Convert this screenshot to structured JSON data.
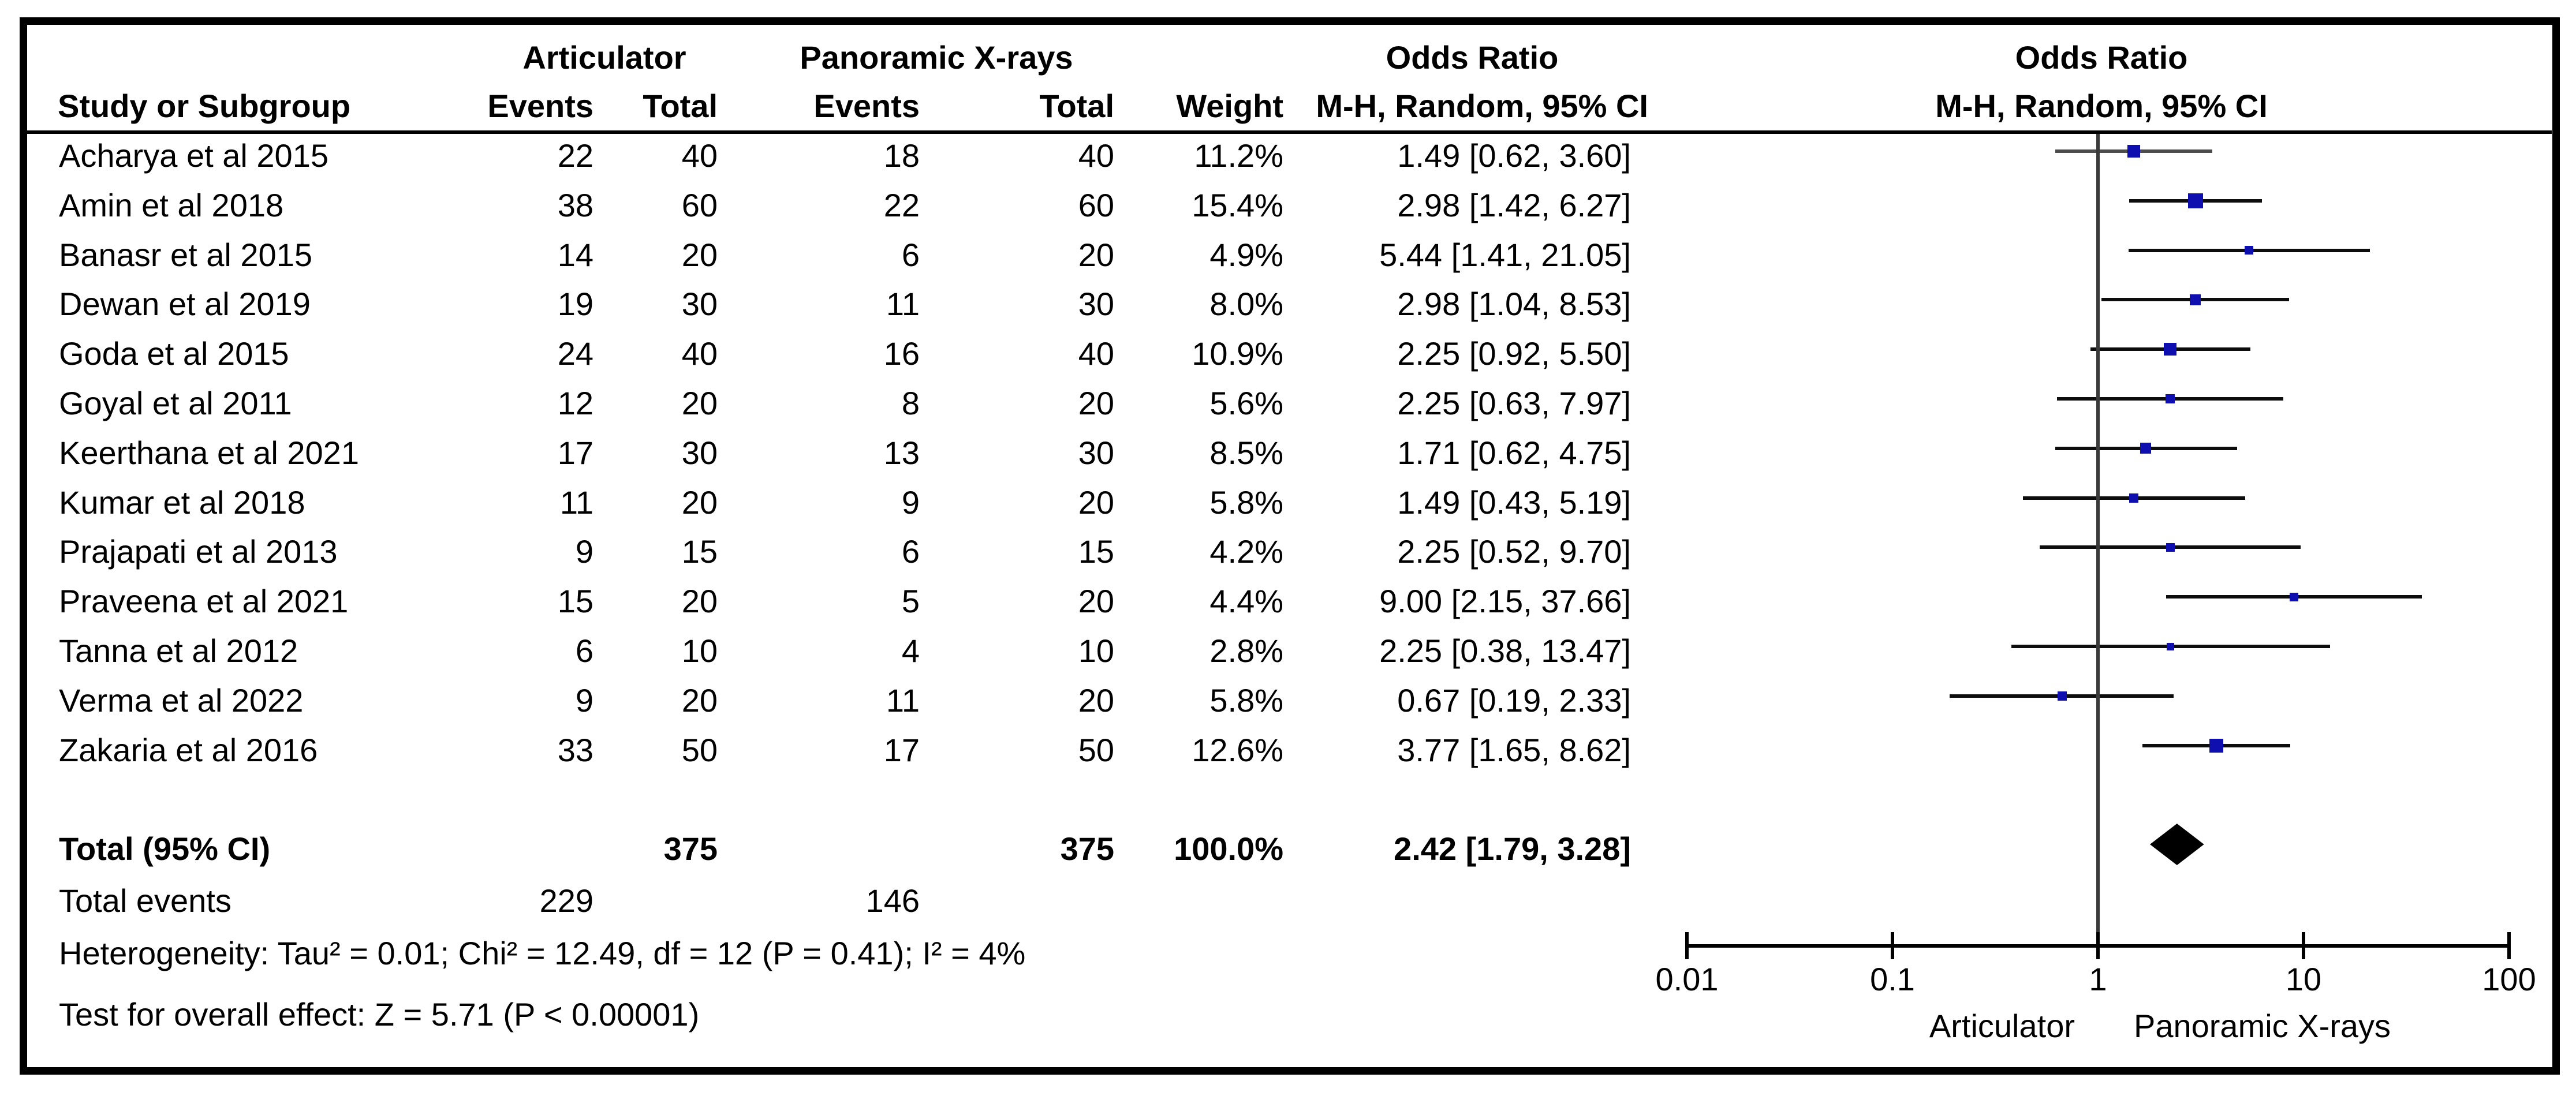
{
  "header": {
    "group1": "Articulator",
    "group2": "Panoramic X-rays",
    "or_col_title": "Odds Ratio",
    "or_plot_title": "Odds Ratio",
    "method_col": "M-H, Random, 95% CI",
    "method_plot": "M-H, Random, 95% CI",
    "study": "Study or Subgroup",
    "events1": "Events",
    "total1": "Total",
    "events2": "Events",
    "total2": "Total",
    "weight": "Weight"
  },
  "colors": {
    "marker": "#0f0fb0",
    "ci_line": "#0d0d0d",
    "ci_line_first": "#4d4d4d",
    "diamond": "#000000",
    "axis": "#000000",
    "null_line": "#3a3a3a",
    "border": "#000000"
  },
  "chart_data": {
    "type": "scatter",
    "subtype": "forest-plot",
    "effect_measure": "Odds Ratio, M-H, Random, 95% CI",
    "x_axis": {
      "scale": "log10",
      "range": [
        0.01,
        100
      ],
      "ticks": [
        "0.01",
        "0.1",
        "1",
        "10",
        "100"
      ],
      "null_value": 1,
      "left_label": "Articulator",
      "right_label": "Panoramic X-rays"
    },
    "studies": [
      {
        "name": "Acharya et al 2015",
        "events1": "22",
        "total1": "40",
        "events2": "18",
        "total2": "40",
        "weight": "11.2%",
        "weight_pct": 11.2,
        "or": 1.49,
        "ci_low": 0.62,
        "ci_high": 3.6,
        "or_text": "1.49 [0.62, 3.60]"
      },
      {
        "name": "Amin et al 2018",
        "events1": "38",
        "total1": "60",
        "events2": "22",
        "total2": "60",
        "weight": "15.4%",
        "weight_pct": 15.4,
        "or": 2.98,
        "ci_low": 1.42,
        "ci_high": 6.27,
        "or_text": "2.98 [1.42, 6.27]"
      },
      {
        "name": "Banasr et al 2015",
        "events1": "14",
        "total1": "20",
        "events2": "6",
        "total2": "20",
        "weight": "4.9%",
        "weight_pct": 4.9,
        "or": 5.44,
        "ci_low": 1.41,
        "ci_high": 21.05,
        "or_text": "5.44 [1.41, 21.05]"
      },
      {
        "name": "Dewan et al 2019",
        "events1": "19",
        "total1": "30",
        "events2": "11",
        "total2": "30",
        "weight": "8.0%",
        "weight_pct": 8.0,
        "or": 2.98,
        "ci_low": 1.04,
        "ci_high": 8.53,
        "or_text": "2.98 [1.04, 8.53]"
      },
      {
        "name": "Goda et al 2015",
        "events1": "24",
        "total1": "40",
        "events2": "16",
        "total2": "40",
        "weight": "10.9%",
        "weight_pct": 10.9,
        "or": 2.25,
        "ci_low": 0.92,
        "ci_high": 5.5,
        "or_text": "2.25 [0.92, 5.50]"
      },
      {
        "name": "Goyal et al 2011",
        "events1": "12",
        "total1": "20",
        "events2": "8",
        "total2": "20",
        "weight": "5.6%",
        "weight_pct": 5.6,
        "or": 2.25,
        "ci_low": 0.63,
        "ci_high": 7.97,
        "or_text": "2.25 [0.63, 7.97]"
      },
      {
        "name": "Keerthana et al 2021",
        "events1": "17",
        "total1": "30",
        "events2": "13",
        "total2": "30",
        "weight": "8.5%",
        "weight_pct": 8.5,
        "or": 1.71,
        "ci_low": 0.62,
        "ci_high": 4.75,
        "or_text": "1.71 [0.62, 4.75]"
      },
      {
        "name": "Kumar et al 2018",
        "events1": "11",
        "total1": "20",
        "events2": "9",
        "total2": "20",
        "weight": "5.8%",
        "weight_pct": 5.8,
        "or": 1.49,
        "ci_low": 0.43,
        "ci_high": 5.19,
        "or_text": "1.49 [0.43, 5.19]"
      },
      {
        "name": "Prajapati et al 2013",
        "events1": "9",
        "total1": "15",
        "events2": "6",
        "total2": "15",
        "weight": "4.2%",
        "weight_pct": 4.2,
        "or": 2.25,
        "ci_low": 0.52,
        "ci_high": 9.7,
        "or_text": "2.25 [0.52, 9.70]"
      },
      {
        "name": "Praveena et al 2021",
        "events1": "15",
        "total1": "20",
        "events2": "5",
        "total2": "20",
        "weight": "4.4%",
        "weight_pct": 4.4,
        "or": 9.0,
        "ci_low": 2.15,
        "ci_high": 37.66,
        "or_text": "9.00 [2.15, 37.66]"
      },
      {
        "name": "Tanna et al 2012",
        "events1": "6",
        "total1": "10",
        "events2": "4",
        "total2": "10",
        "weight": "2.8%",
        "weight_pct": 2.8,
        "or": 2.25,
        "ci_low": 0.38,
        "ci_high": 13.47,
        "or_text": "2.25 [0.38, 13.47]"
      },
      {
        "name": "Verma et al 2022",
        "events1": "9",
        "total1": "20",
        "events2": "11",
        "total2": "20",
        "weight": "5.8%",
        "weight_pct": 5.8,
        "or": 0.67,
        "ci_low": 0.19,
        "ci_high": 2.33,
        "or_text": "0.67 [0.19, 2.33]"
      },
      {
        "name": "Zakaria et al 2016",
        "events1": "33",
        "total1": "50",
        "events2": "17",
        "total2": "50",
        "weight": "12.6%",
        "weight_pct": 12.6,
        "or": 3.77,
        "ci_low": 1.65,
        "ci_high": 8.62,
        "or_text": "3.77 [1.65, 8.62]"
      }
    ],
    "total": {
      "label": "Total (95% CI)",
      "total1": "375",
      "total2": "375",
      "weight": "100.0%",
      "or": 2.42,
      "ci_low": 1.79,
      "ci_high": 3.28,
      "or_text": "2.42 [1.79, 3.28]"
    },
    "total_events": {
      "label": "Total events",
      "events1": "229",
      "events2": "146"
    },
    "footnotes": {
      "heterogeneity": "Heterogeneity: Tau² = 0.01; Chi² = 12.49, df = 12 (P = 0.41); I² = 4%",
      "overall_effect": "Test for overall effect: Z = 5.71 (P < 0.00001)"
    }
  }
}
